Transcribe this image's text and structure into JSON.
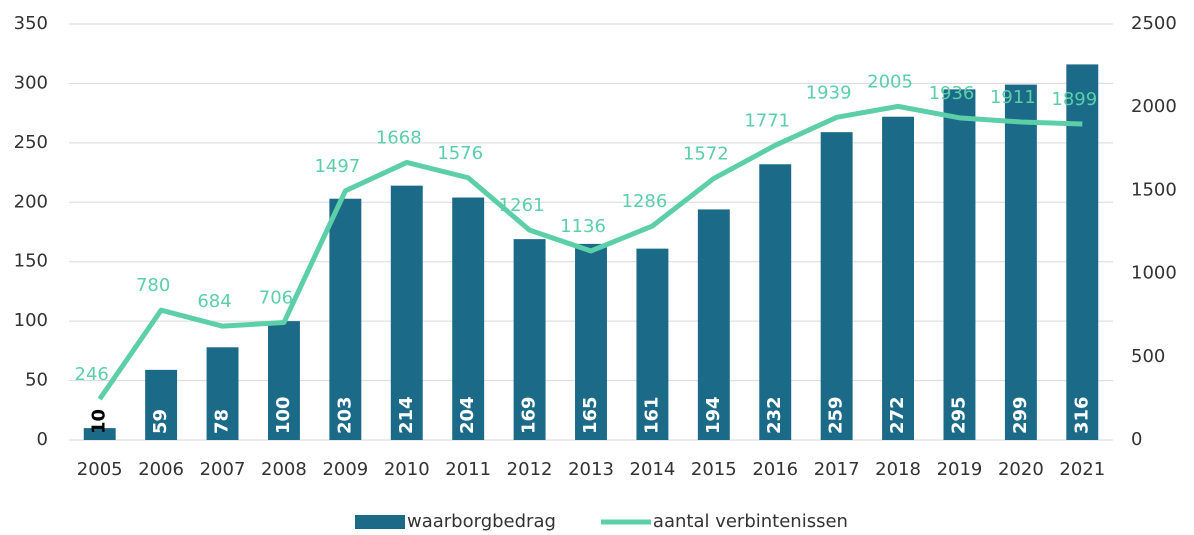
{
  "chart_data": {
    "type": "bar",
    "categories": [
      "2005",
      "2006",
      "2007",
      "2008",
      "2009",
      "2010",
      "2011",
      "2012",
      "2013",
      "2014",
      "2015",
      "2016",
      "2017",
      "2018",
      "2019",
      "2020",
      "2021"
    ],
    "series": [
      {
        "name": "waarborgbedrag",
        "color": "#1b6a88",
        "type": "bar",
        "axis": "y",
        "values": [
          10,
          59,
          78,
          100,
          203,
          214,
          204,
          169,
          165,
          161,
          194,
          232,
          259,
          272,
          295,
          299,
          316
        ]
      },
      {
        "name": "aantal verbintenissen",
        "color": "#5ccfa9",
        "type": "line",
        "axis": "y2",
        "values": [
          246,
          780,
          684,
          706,
          1497,
          1668,
          1576,
          1261,
          1136,
          1286,
          1572,
          1771,
          1939,
          2005,
          1936,
          1911,
          1899
        ]
      }
    ],
    "ylim": [
      0,
      350
    ],
    "yticks": [
      0,
      50,
      100,
      150,
      200,
      250,
      300,
      350
    ],
    "y2lim": [
      0,
      2500
    ],
    "y2ticks": [
      0,
      500,
      1000,
      1500,
      2000,
      2500
    ],
    "legend": "bottom"
  }
}
